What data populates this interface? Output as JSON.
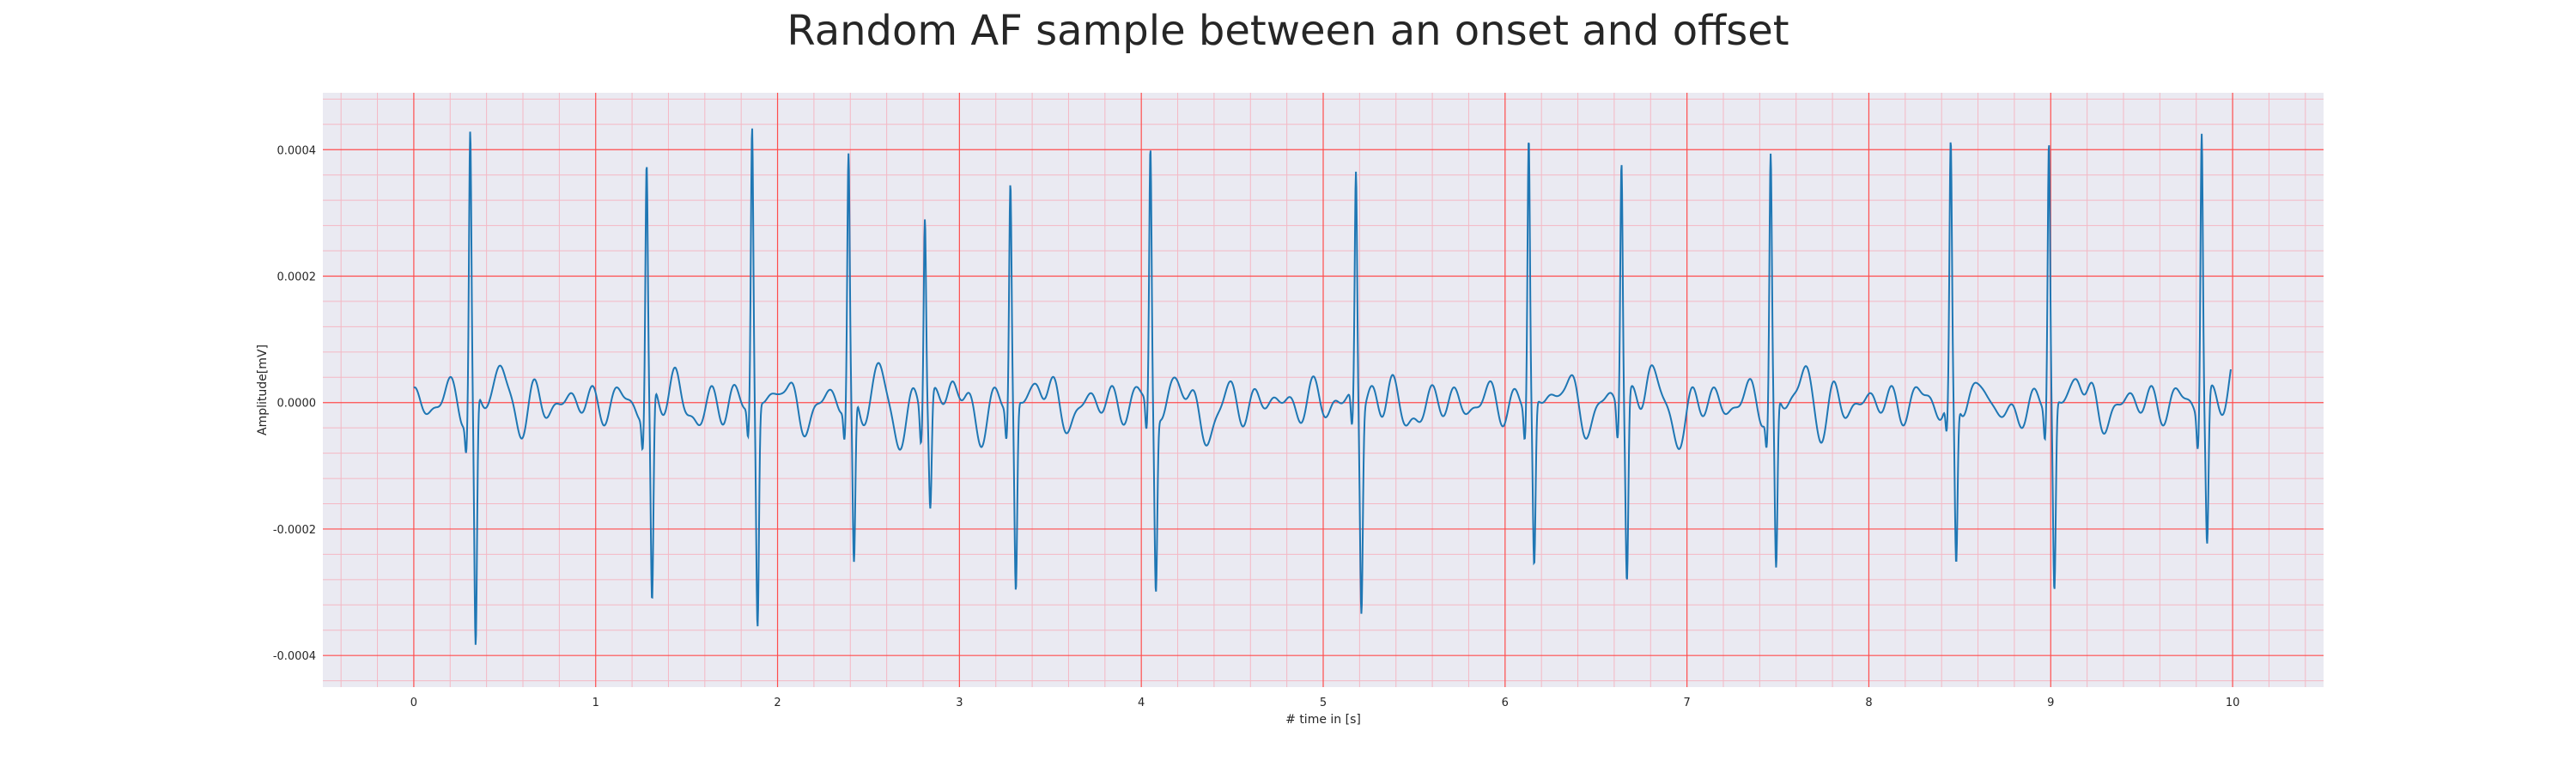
{
  "chart_data": {
    "type": "line",
    "title": "Random AF sample between an onset and offset",
    "xlabel": "# time in [s]",
    "ylabel": "Amplitude[mV]",
    "xlim": [
      -0.5,
      10.5
    ],
    "ylim": [
      -0.00045,
      0.00049
    ],
    "x_ticks": [
      0,
      1,
      2,
      3,
      4,
      5,
      6,
      7,
      8,
      9,
      10
    ],
    "x_tick_labels": [
      "0",
      "1",
      "2",
      "3",
      "4",
      "5",
      "6",
      "7",
      "8",
      "9",
      "10"
    ],
    "y_ticks": [
      -0.0004,
      -0.0002,
      0.0,
      0.0002,
      0.0004
    ],
    "y_tick_labels": [
      "-0.0004",
      "-0.0002",
      "0.0000",
      "0.0002",
      "0.0004"
    ],
    "grid": true,
    "minor_grid": true,
    "legend": "none",
    "colors": {
      "line": "#1f77b4",
      "plot_background": "#eaeaf2",
      "major_grid": "#ff4d4d",
      "minor_grid": "#f4b8c4"
    },
    "series": [
      {
        "beats": [
          {
            "t": 0.31,
            "r": 0.00043,
            "s": -0.000405
          },
          {
            "t": 1.28,
            "r": 0.00038,
            "s": -0.00034
          },
          {
            "t": 1.86,
            "r": 0.00043,
            "s": -0.00036
          },
          {
            "t": 2.39,
            "r": 0.00038,
            "s": -0.000275
          },
          {
            "t": 2.81,
            "r": 0.00031,
            "s": -0.000178
          },
          {
            "t": 3.28,
            "r": 0.000345,
            "s": -0.000305
          },
          {
            "t": 4.05,
            "r": 0.0004,
            "s": -0.000285
          },
          {
            "t": 5.18,
            "r": 0.000365,
            "s": -0.000318
          },
          {
            "t": 6.13,
            "r": 0.00042,
            "s": -0.000265
          },
          {
            "t": 6.64,
            "r": 0.000395,
            "s": -0.00029
          },
          {
            "t": 7.46,
            "r": 0.000385,
            "s": -0.00028
          },
          {
            "t": 8.45,
            "r": 0.00039,
            "s": -0.000265
          },
          {
            "t": 8.99,
            "r": 0.000412,
            "s": -0.000305
          },
          {
            "t": 9.83,
            "r": 0.00045,
            "s": -0.000232
          }
        ],
        "x_start": 0.0,
        "x_end": 9.99,
        "baseline": 0.0
      }
    ]
  }
}
